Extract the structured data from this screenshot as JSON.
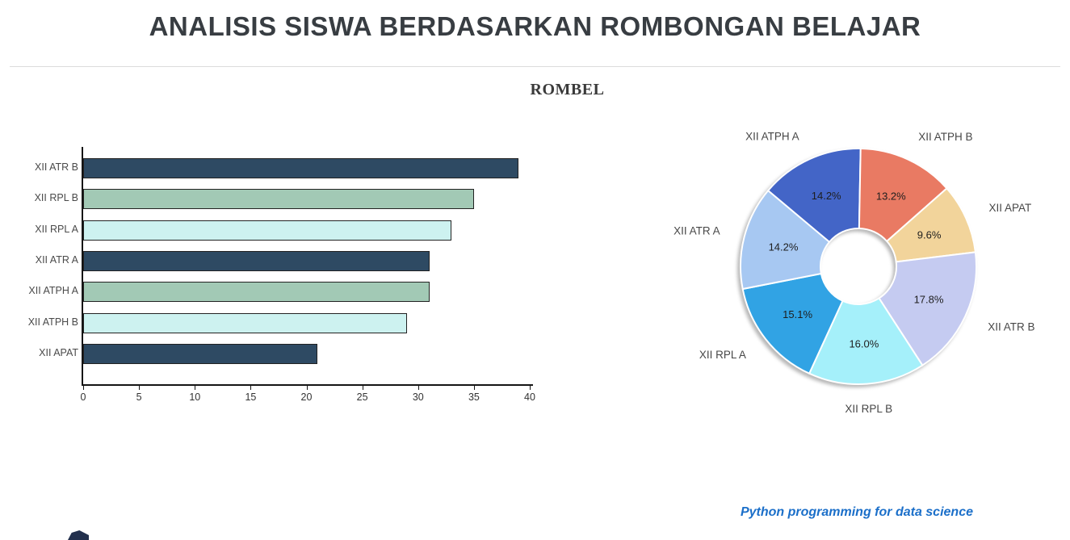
{
  "header": {
    "title": "ANALISIS SISWA BERDASARKAN ROMBONGAN BELAJAR",
    "chart_title": "ROMBEL"
  },
  "footer": {
    "credit": "Python programming for data science"
  },
  "colors": {
    "bar_navy": "#2e4a63",
    "bar_sage": "#a2c9b5",
    "bar_pale_cyan": "#cdf2f0",
    "axis": "#151515",
    "title_text": "#383d42",
    "credit_blue": "#1b6fc9"
  },
  "chart_data": [
    {
      "type": "bar",
      "orientation": "horizontal",
      "title": "ROMBEL",
      "categories": [
        "XII ATR B",
        "XII RPL B",
        "XII RPL A",
        "XII ATR A",
        "XII ATPH A",
        "XII ATPH B",
        "XII APAT"
      ],
      "values": [
        39,
        35,
        33,
        31,
        31,
        29,
        21
      ],
      "bar_colors": [
        "#2e4a63",
        "#a2c9b5",
        "#cdf2f0",
        "#2e4a63",
        "#a2c9b5",
        "#cdf2f0",
        "#2e4a63"
      ],
      "xlim": [
        0,
        40
      ],
      "xticks": [
        0,
        5,
        10,
        15,
        20,
        25,
        30,
        35,
        40
      ],
      "xlabel": "",
      "ylabel": "",
      "grid": false,
      "legend_position": "none"
    },
    {
      "type": "pie",
      "donut": true,
      "title": "ROMBEL",
      "labels": [
        "XII ATPH A",
        "XII ATPH B",
        "XII APAT",
        "XII ATR B",
        "XII RPL B",
        "XII RPL A",
        "XII ATR A"
      ],
      "values": [
        31,
        29,
        21,
        39,
        35,
        33,
        31
      ],
      "pcts": [
        14.2,
        13.2,
        9.6,
        17.8,
        16.0,
        15.1,
        14.2
      ],
      "pct_labels": [
        "14.2%",
        "13.2%",
        "9.6%",
        "17.8%",
        "16.0%",
        "15.1%",
        "14.2%"
      ],
      "colors": [
        "#4365c7",
        "#e97a63",
        "#f2d49b",
        "#c5cbf1",
        "#a5f0fa",
        "#31a3e4",
        "#a7c8f2"
      ],
      "start_angle_deg": 140,
      "direction": "clockwise",
      "legend_position": "none"
    }
  ]
}
